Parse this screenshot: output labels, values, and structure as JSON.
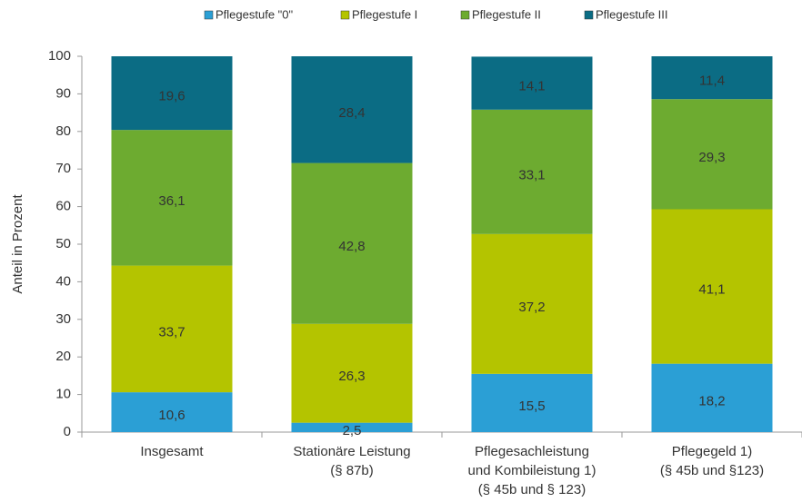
{
  "chart_data": {
    "type": "stacked_bar",
    "categories": [
      "Insgesamt",
      "Stationäre Leistung\n(§ 87b)",
      "Pflegesachleistung\nund Kombileistung 1)\n(§ 45b und § 123)",
      "Pflegegeld 1)\n(§ 45b und §123)"
    ],
    "series": [
      {
        "name": "Pflegestufe \"0\"",
        "color": "#2b9fd5",
        "values": [
          10.6,
          2.5,
          15.5,
          18.2
        ],
        "value_labels": [
          "10,6",
          "2,5",
          "15,5",
          "18,2"
        ]
      },
      {
        "name": "Pflegestufe I",
        "color": "#b4c400",
        "values": [
          33.7,
          26.3,
          37.2,
          41.1
        ],
        "value_labels": [
          "33,7",
          "26,3",
          "37,2",
          "41,1"
        ]
      },
      {
        "name": "Pflegestufe II",
        "color": "#6dab30",
        "values": [
          36.1,
          42.8,
          33.1,
          29.3
        ],
        "value_labels": [
          "36,1",
          "42,8",
          "33,1",
          "29,3"
        ]
      },
      {
        "name": "Pflegestufe III",
        "color": "#0b6c84",
        "values": [
          19.6,
          28.4,
          14.1,
          11.4
        ],
        "value_labels": [
          "19,6",
          "28,4",
          "14,1",
          "11,4"
        ]
      }
    ],
    "ylabel": "Anteil in Prozent",
    "ylim": [
      0,
      100
    ],
    "yticks": [
      0,
      10,
      20,
      30,
      40,
      50,
      60,
      70,
      80,
      90,
      100
    ],
    "grid": false,
    "legend": "top"
  }
}
